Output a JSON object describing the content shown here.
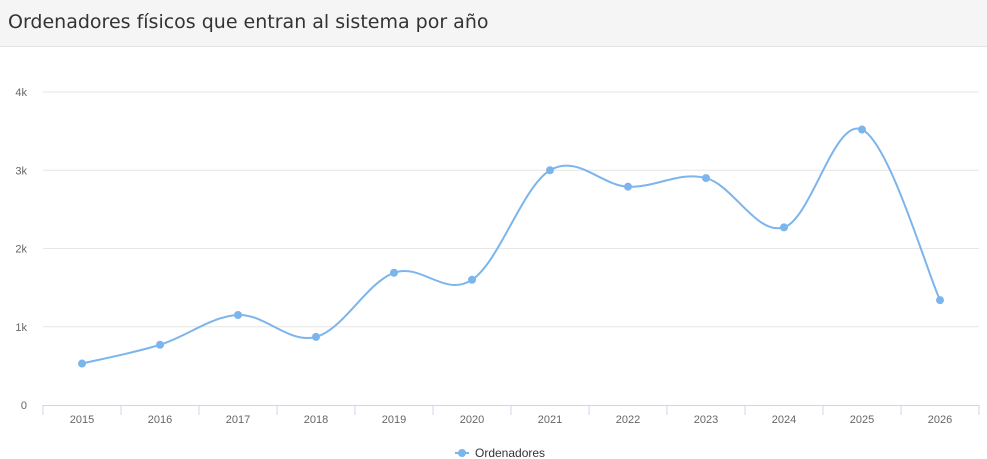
{
  "header": {
    "title": "Ordenadores físicos que entran al sistema por año"
  },
  "chart_data": {
    "type": "line",
    "title": "Ordenadores físicos que entran al sistema por año",
    "xlabel": "",
    "ylabel": "",
    "categories": [
      "2015",
      "2016",
      "2017",
      "2018",
      "2019",
      "2020",
      "2021",
      "2022",
      "2023",
      "2024",
      "2025",
      "2026"
    ],
    "series": [
      {
        "name": "Ordenadores",
        "color": "#7cb5ec",
        "values": [
          530,
          770,
          1150,
          870,
          1690,
          1600,
          3000,
          2790,
          2900,
          2270,
          3520,
          1340
        ]
      }
    ],
    "ylim": [
      0,
      4000
    ],
    "y_ticks": [
      {
        "value": 0,
        "label": "0"
      },
      {
        "value": 1000,
        "label": "1k"
      },
      {
        "value": 2000,
        "label": "2k"
      },
      {
        "value": 3000,
        "label": "3k"
      },
      {
        "value": 4000,
        "label": "4k"
      }
    ],
    "grid": true,
    "legend_position": "bottom-center"
  }
}
